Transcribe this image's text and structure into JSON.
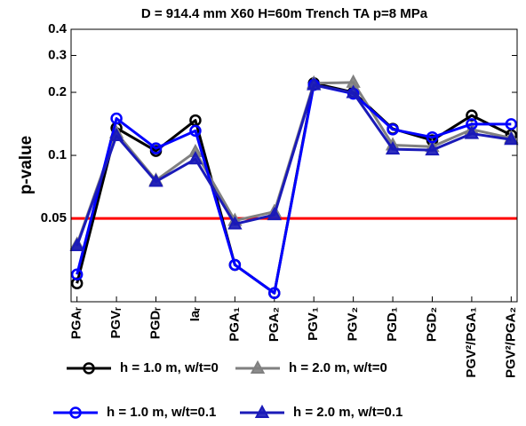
{
  "chart_data": {
    "type": "line",
    "title": "D = 914.4 mm X60 H=60m Trench TA p=8 MPa",
    "y_label": "p-value",
    "categories": [
      "PGAᵣ",
      "PGVᵣ",
      "PGDᵣ",
      "Iaᵣ",
      "PGA₁",
      "PGA₂",
      "PGV₁",
      "PGV₂",
      "PGD₁",
      "PGD₂",
      "PGV²/PGA₁",
      "PGV²/PGA₂"
    ],
    "y_scale": "log",
    "ylim": [
      0.02,
      0.4
    ],
    "yticks": [
      0.05,
      0.1,
      0.2,
      0.3,
      0.4
    ],
    "hline": {
      "value": 0.05,
      "color": "#ff0000"
    },
    "series": [
      {
        "name": "h = 1.0 m, w/t=0",
        "color": "#000000",
        "marker": "circle",
        "values": [
          0.0245,
          0.135,
          0.105,
          0.147,
          0.03,
          0.022,
          0.221,
          0.2,
          0.134,
          0.118,
          0.155,
          0.125
        ]
      },
      {
        "name": "h = 2.0 m, w/t=0",
        "color": "#808080",
        "marker": "triangle",
        "values": [
          0.0376,
          0.128,
          0.076,
          0.104,
          0.0488,
          0.0538,
          0.221,
          0.223,
          0.112,
          0.11,
          0.133,
          0.121
        ]
      },
      {
        "name": "h = 1.0 m, w/t=0.1",
        "color": "#0000ff",
        "marker": "circle",
        "values": [
          0.027,
          0.15,
          0.108,
          0.131,
          0.03,
          0.022,
          0.217,
          0.197,
          0.133,
          0.122,
          0.141,
          0.141
        ]
      },
      {
        "name": "h = 2.0 m, w/t=0.1",
        "color": "#1a1ab8",
        "marker": "triangle",
        "values": [
          0.037,
          0.124,
          0.075,
          0.096,
          0.047,
          0.052,
          0.217,
          0.199,
          0.107,
          0.106,
          0.127,
          0.119
        ]
      }
    ]
  }
}
